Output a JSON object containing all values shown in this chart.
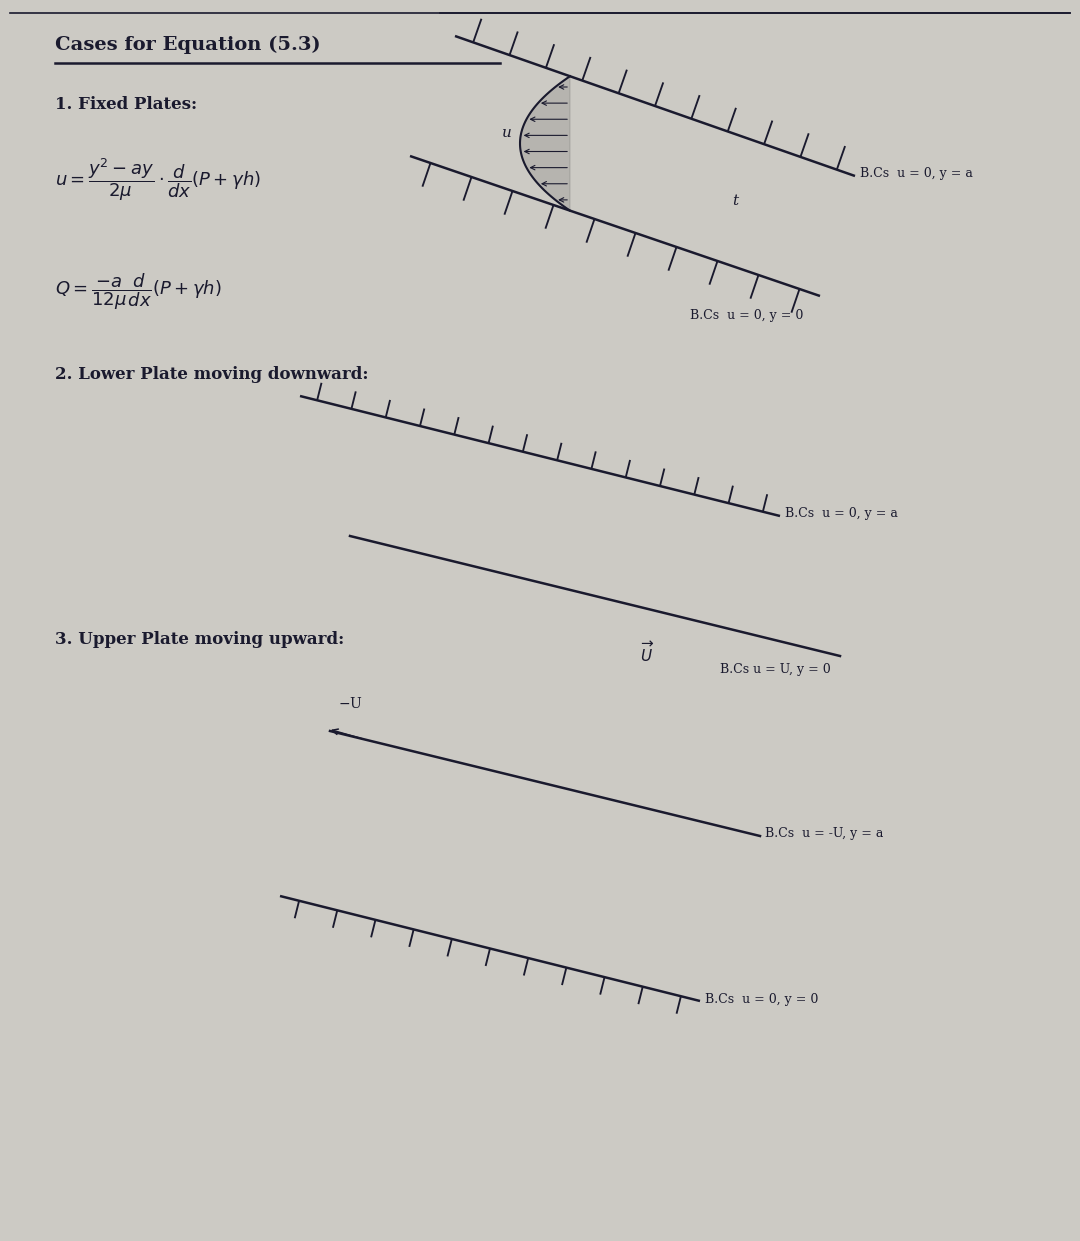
{
  "title": "Cases for Equation (5.3)",
  "bg_color": "#cccac4",
  "text_color": "#1a1a2e",
  "section1_label": "1. Fixed Plates:",
  "section2_label": "2. Lower Plate moving downward:",
  "section3_label": "3. Upper Plate moving upward:",
  "bc1_upper": "B.Cs  u = 0, y = a",
  "bc1_lower": "B.Cs  u = 0, y = 0",
  "bc2_upper": "B.Cs  u = 0, y = a",
  "bc2_lower": "B.Cs u = U, y = 0",
  "bc3_upper": "B.Cs  u = -U, y = a",
  "bc3_lower": "B.Cs  u = 0, y = 0"
}
